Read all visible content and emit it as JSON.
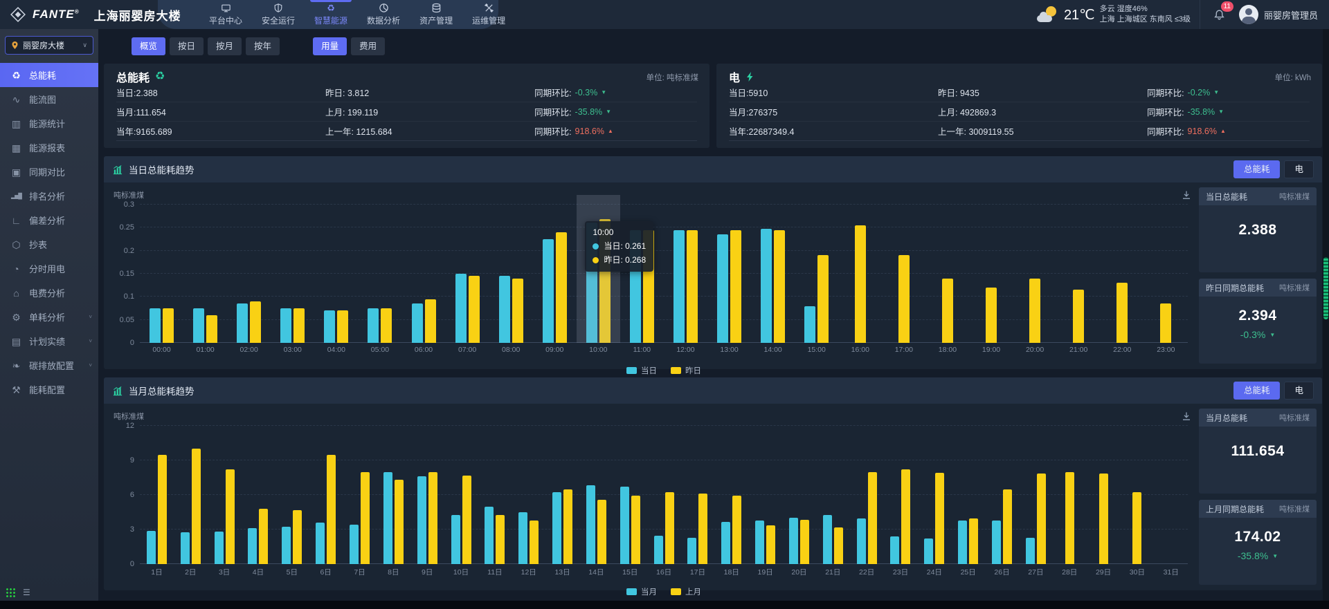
{
  "header": {
    "brand": "FANTE",
    "brand_reg": "®",
    "building": "上海丽婴房大楼",
    "nav": [
      {
        "label": "平台中心",
        "icon": "platform-icon",
        "active": false
      },
      {
        "label": "安全运行",
        "icon": "safety-icon",
        "active": false
      },
      {
        "label": "智慧能源",
        "icon": "energy-icon",
        "active": true
      },
      {
        "label": "数据分析",
        "icon": "analysis-icon",
        "active": false
      },
      {
        "label": "资产管理",
        "icon": "asset-icon",
        "active": false
      },
      {
        "label": "运维管理",
        "icon": "ops-icon",
        "active": false
      }
    ],
    "weather": {
      "temp": "21℃",
      "line1": "多云 湿度46%",
      "line2": "上海 上海城区 东南风 ≤3级"
    },
    "badge": "11",
    "user": "丽婴房管理员"
  },
  "sidebar": {
    "selector": "丽婴房大楼",
    "items": [
      {
        "label": "总能耗",
        "icon": "recycle-icon",
        "active": true,
        "expandable": false
      },
      {
        "label": "能流图",
        "icon": "flow-icon",
        "active": false,
        "expandable": false
      },
      {
        "label": "能源统计",
        "icon": "stats-icon",
        "active": false,
        "expandable": false
      },
      {
        "label": "能源报表",
        "icon": "report-icon",
        "active": false,
        "expandable": false
      },
      {
        "label": "同期对比",
        "icon": "compare-icon",
        "active": false,
        "expandable": false
      },
      {
        "label": "排名分析",
        "icon": "ranking-icon",
        "active": false,
        "expandable": false
      },
      {
        "label": "偏差分析",
        "icon": "deviation-icon",
        "active": false,
        "expandable": false
      },
      {
        "label": "抄表",
        "icon": "meter-icon",
        "active": false,
        "expandable": false
      },
      {
        "label": "分时用电",
        "icon": "tou-icon",
        "active": false,
        "expandable": false
      },
      {
        "label": "电费分析",
        "icon": "cost-icon",
        "active": false,
        "expandable": false
      },
      {
        "label": "单耗分析",
        "icon": "unit-icon",
        "active": false,
        "expandable": true
      },
      {
        "label": "计划实绩",
        "icon": "plan-icon",
        "active": false,
        "expandable": true
      },
      {
        "label": "碳排放配置",
        "icon": "carbon-icon",
        "active": false,
        "expandable": true
      },
      {
        "label": "能耗配置",
        "icon": "config-icon",
        "active": false,
        "expandable": false
      }
    ]
  },
  "tabs": {
    "period": [
      "概览",
      "按日",
      "按月",
      "按年"
    ],
    "period_active": 0,
    "mode": [
      "用量",
      "费用"
    ],
    "mode_active": 0
  },
  "cards": [
    {
      "title": "总能耗",
      "icon": "recycle",
      "unit": "单位: 吨标准煤",
      "rows": [
        {
          "col1": "当日:2.388",
          "col2": "昨日: 3.812",
          "ratio_label": "同期环比:",
          "ratio": "-0.3%",
          "trend": "down"
        },
        {
          "col1": "当月:111.654",
          "col2": "上月: 199.119",
          "ratio_label": "同期环比:",
          "ratio": "-35.8%",
          "trend": "down"
        },
        {
          "col1": "当年:9165.689",
          "col2": "上一年: 1215.684",
          "ratio_label": "同期环比:",
          "ratio": "918.6%",
          "trend": "up"
        }
      ]
    },
    {
      "title": "电",
      "icon": "bolt",
      "unit": "单位: kWh",
      "rows": [
        {
          "col1": "当日:5910",
          "col2": "昨日: 9435",
          "ratio_label": "同期环比:",
          "ratio": "-0.2%",
          "trend": "down"
        },
        {
          "col1": "当月:276375",
          "col2": "上月: 492869.3",
          "ratio_label": "同期环比:",
          "ratio": "-35.8%",
          "trend": "down"
        },
        {
          "col1": "当年:22687349.4",
          "col2": "上一年: 3009119.55",
          "ratio_label": "同期环比:",
          "ratio": "918.6%",
          "trend": "up"
        }
      ]
    }
  ],
  "sections": [
    {
      "title": "当日总能耗趋势",
      "buttons": [
        "总能耗",
        "电"
      ],
      "button_active": 0,
      "panels": [
        {
          "label": "当日总能耗",
          "unit": "吨标准煤",
          "value": "2.388",
          "delta": null,
          "trend": null
        },
        {
          "label": "昨日同期总能耗",
          "unit": "吨标准煤",
          "value": "2.394",
          "delta": "-0.3%",
          "trend": "down"
        }
      ]
    },
    {
      "title": "当月总能耗趋势",
      "buttons": [
        "总能耗",
        "电"
      ],
      "button_active": 0,
      "panels": [
        {
          "label": "当月总能耗",
          "unit": "吨标准煤",
          "value": "111.654",
          "delta": null,
          "trend": null
        },
        {
          "label": "上月同期总能耗",
          "unit": "吨标准煤",
          "value": "174.02",
          "delta": "-35.8%",
          "trend": "down"
        }
      ]
    }
  ],
  "chart_data": [
    {
      "type": "bar",
      "title": "当日总能耗趋势",
      "ylabel": "吨标准煤",
      "ylim": [
        0,
        0.3
      ],
      "yticks": [
        0,
        0.05,
        0.1,
        0.15,
        0.2,
        0.25,
        0.3
      ],
      "grid": true,
      "legend_position": "bottom",
      "categories": [
        "00:00",
        "01:00",
        "02:00",
        "03:00",
        "04:00",
        "05:00",
        "06:00",
        "07:00",
        "08:00",
        "09:00",
        "10:00",
        "11:00",
        "12:00",
        "13:00",
        "14:00",
        "15:00",
        "16:00",
        "17:00",
        "18:00",
        "19:00",
        "20:00",
        "21:00",
        "22:00",
        "23:00"
      ],
      "series": [
        {
          "name": "当日",
          "color": "#41c6e0",
          "values": [
            0.075,
            0.075,
            0.085,
            0.075,
            0.07,
            0.075,
            0.085,
            0.15,
            0.145,
            0.225,
            0.261,
            0.245,
            0.245,
            0.235,
            0.248,
            0.08,
            null,
            null,
            null,
            null,
            null,
            null,
            null,
            null
          ]
        },
        {
          "name": "昨日",
          "color": "#f9d114",
          "values": [
            0.075,
            0.06,
            0.09,
            0.075,
            0.07,
            0.075,
            0.095,
            0.145,
            0.14,
            0.24,
            0.268,
            0.245,
            0.245,
            0.245,
            0.245,
            0.19,
            0.255,
            0.19,
            0.14,
            0.12,
            0.14,
            0.115,
            0.13,
            0.085
          ]
        }
      ],
      "tooltip": {
        "index": 10,
        "title": "10:00",
        "items": [
          {
            "name": "当日",
            "value": "0.261"
          },
          {
            "name": "昨日",
            "value": "0.268"
          }
        ]
      }
    },
    {
      "type": "bar",
      "title": "当月总能耗趋势",
      "ylabel": "吨标准煤",
      "ylim": [
        0,
        12
      ],
      "yticks": [
        0,
        3,
        6,
        9,
        12
      ],
      "grid": true,
      "legend_position": "bottom",
      "categories": [
        "1日",
        "2日",
        "3日",
        "4日",
        "5日",
        "6日",
        "7日",
        "8日",
        "9日",
        "10日",
        "11日",
        "12日",
        "13日",
        "14日",
        "15日",
        "16日",
        "17日",
        "18日",
        "19日",
        "20日",
        "21日",
        "22日",
        "23日",
        "24日",
        "25日",
        "26日",
        "27日",
        "28日",
        "29日",
        "30日",
        "31日"
      ],
      "series": [
        {
          "name": "当月",
          "color": "#41c6e0",
          "values": [
            2.9,
            2.75,
            2.8,
            3.1,
            3.27,
            3.58,
            3.4,
            7.97,
            7.6,
            4.28,
            4.96,
            4.5,
            6.25,
            6.83,
            6.73,
            2.44,
            2.29,
            3.67,
            3.78,
            4.04,
            4.28,
            3.97,
            2.38,
            2.21,
            3.78,
            3.76,
            2.3,
            null,
            null,
            null,
            null
          ]
        },
        {
          "name": "上月",
          "color": "#f9d114",
          "values": [
            9.5,
            10.0,
            8.2,
            4.83,
            4.7,
            9.5,
            8.0,
            7.3,
            7.97,
            7.7,
            4.28,
            3.76,
            6.49,
            5.57,
            5.94,
            6.25,
            6.12,
            5.94,
            3.36,
            3.86,
            3.21,
            7.97,
            8.2,
            7.93,
            3.97,
            6.46,
            7.88,
            7.97,
            7.84,
            6.25,
            null
          ]
        }
      ],
      "tooltip": null
    }
  ],
  "colors": {
    "accent": "#5b6af0",
    "up": "#ee6f5f",
    "down": "#3dbf8f",
    "cyan": "#41c6e0",
    "yellow": "#f9d114",
    "icon_green": "#2bd1a3"
  }
}
